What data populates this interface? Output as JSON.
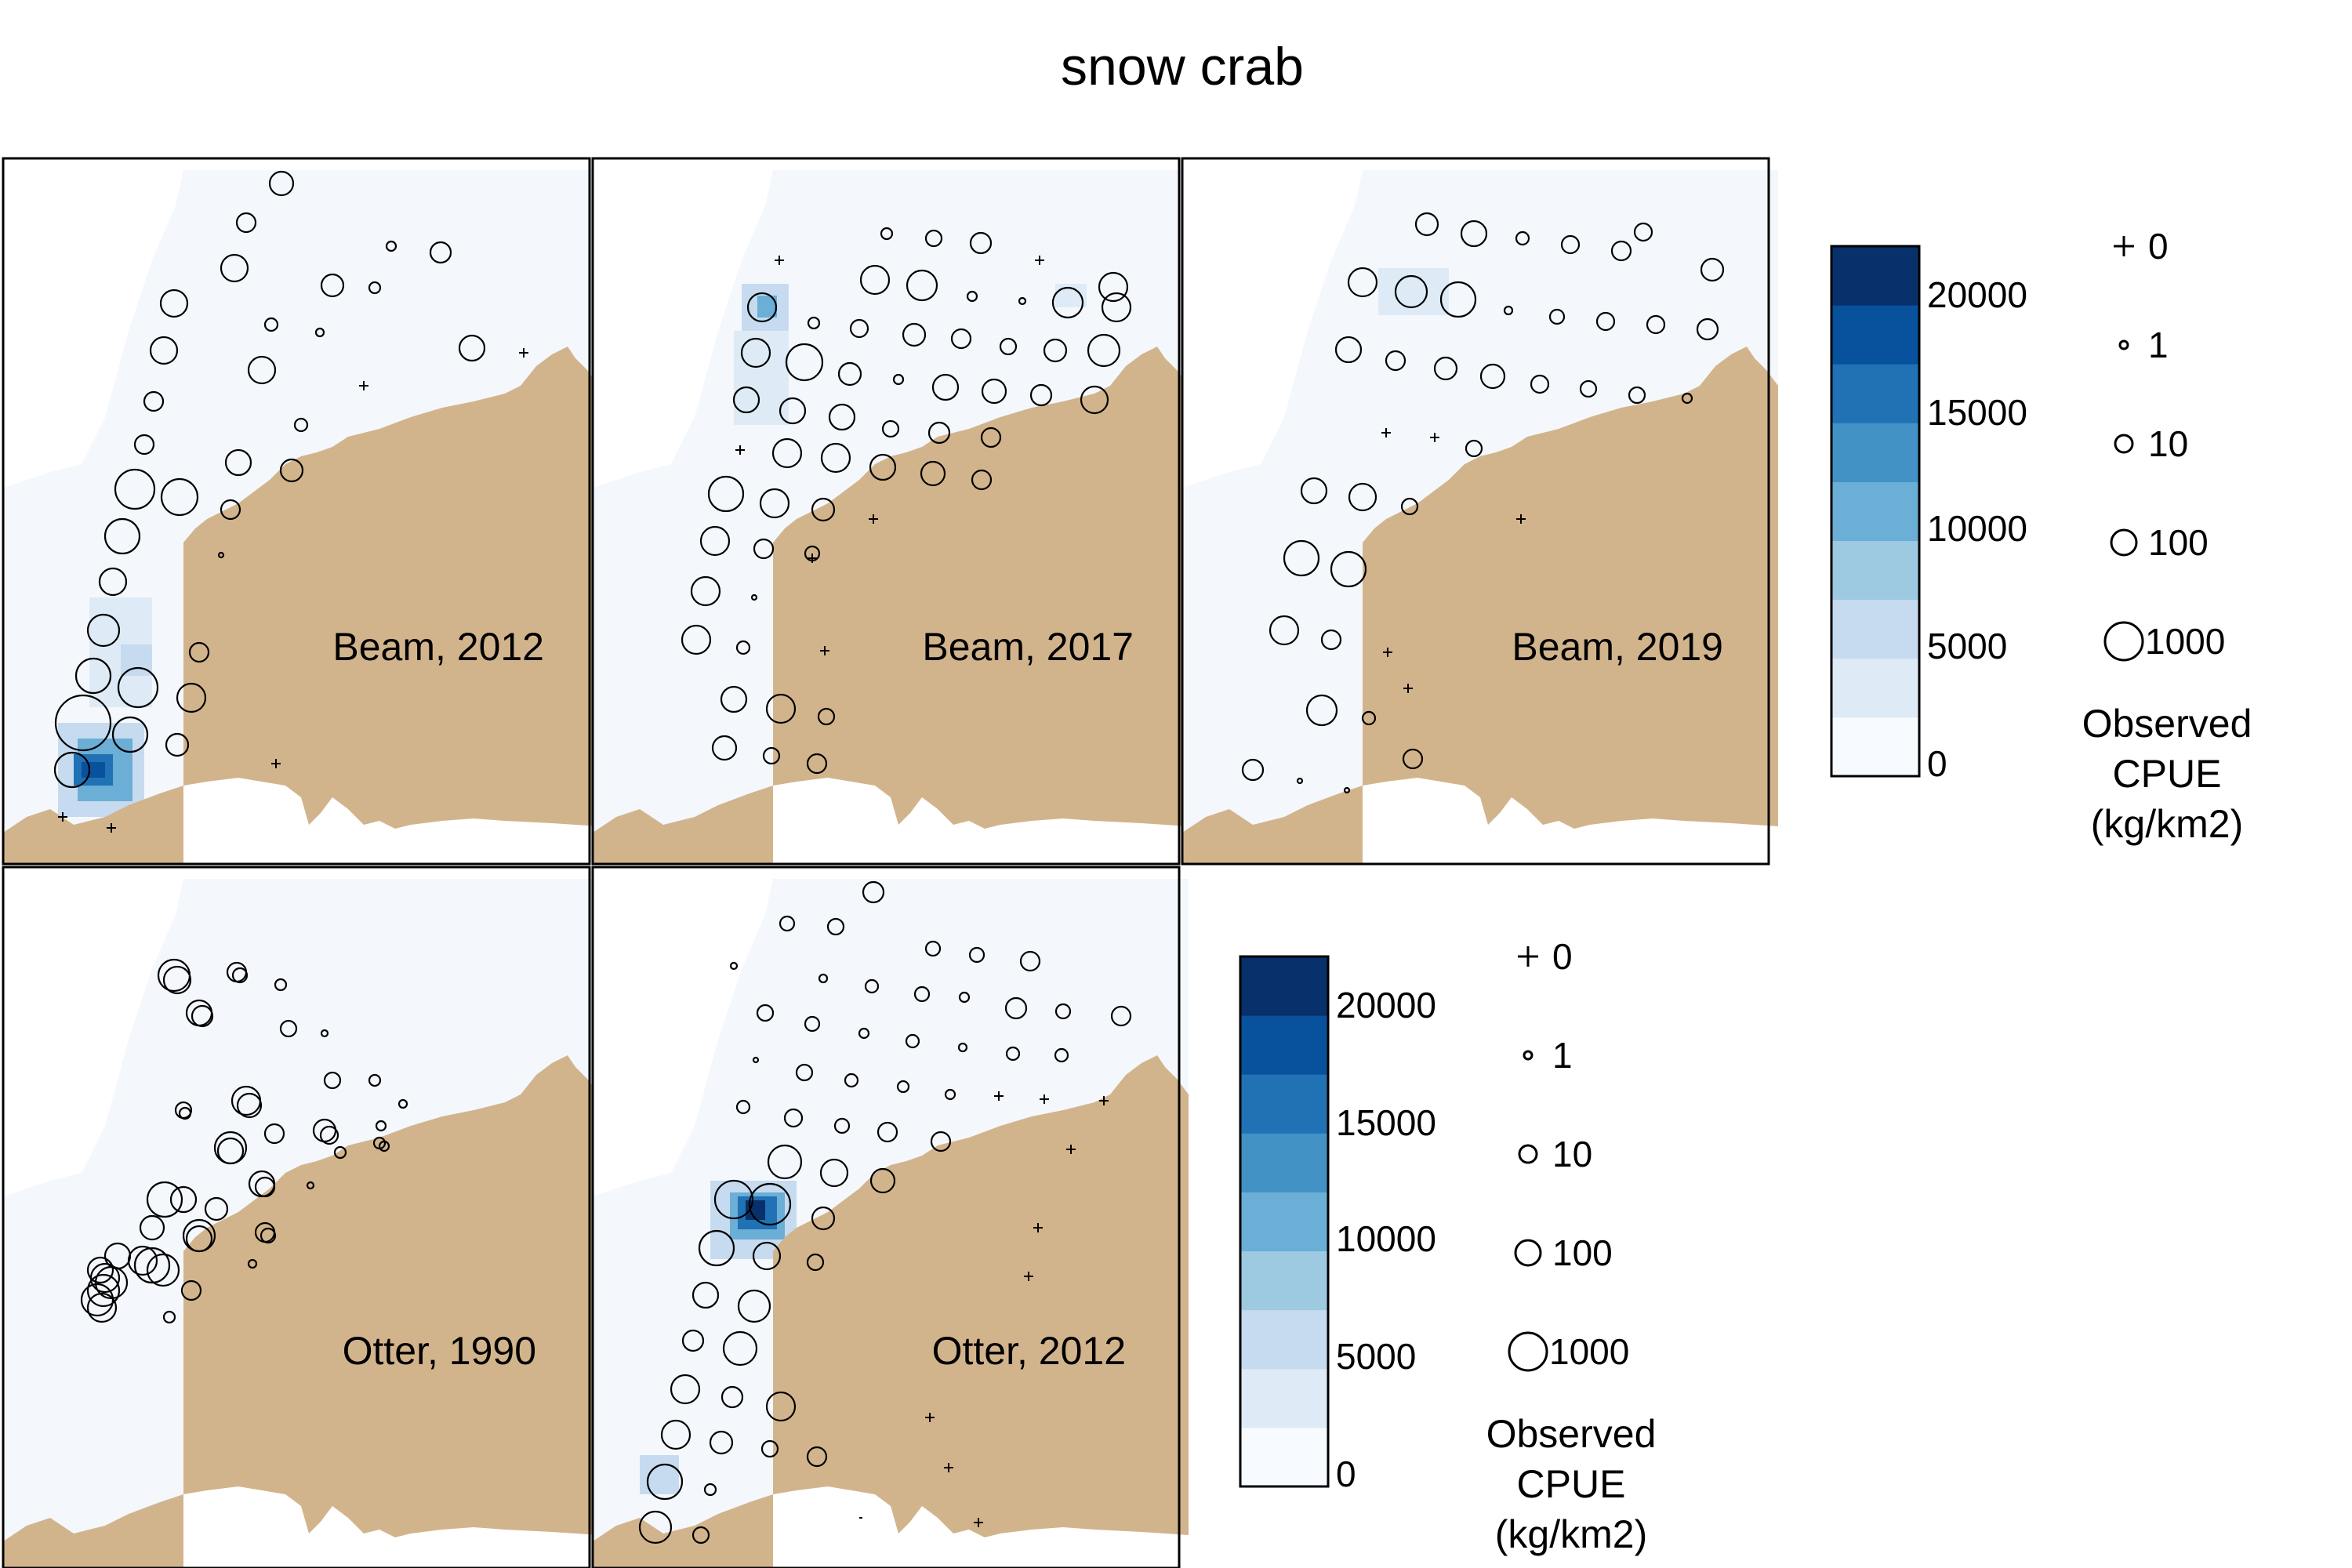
{
  "title": "snow crab",
  "colors": {
    "land": "#d2b48c",
    "water_base": "#f4f8fd",
    "frame": "#000000",
    "scale": [
      "#f7fbff",
      "#deebf7",
      "#c6dbef",
      "#9ecae1",
      "#6baed6",
      "#4292c6",
      "#2171b5",
      "#08519c",
      "#08306b"
    ]
  },
  "panels": [
    {
      "id": "beam-2012",
      "label": "Beam, 2012",
      "gear": "Beam",
      "year": "2012"
    },
    {
      "id": "beam-2017",
      "label": "Beam, 2017",
      "gear": "Beam",
      "year": "2017"
    },
    {
      "id": "beam-2019",
      "label": "Beam, 2019",
      "gear": "Beam",
      "year": "2019"
    },
    {
      "id": "otter-1990",
      "label": "Otter, 1990",
      "gear": "Otter",
      "year": "1990"
    },
    {
      "id": "otter-2012",
      "label": "Otter, 2012",
      "gear": "Otter",
      "year": "2012"
    }
  ],
  "colorbar": {
    "ticks": [
      "20000",
      "15000",
      "10000",
      "5000",
      "0"
    ],
    "tick_values": [
      20000,
      15000,
      10000,
      5000,
      0
    ],
    "max": 22500,
    "levels": 9
  },
  "size_legend": {
    "entries": [
      {
        "symbol": "plus",
        "label": "0",
        "value": 0
      },
      {
        "symbol": "circle",
        "label": "1",
        "value": 1
      },
      {
        "symbol": "circle",
        "label": "10",
        "value": 10
      },
      {
        "symbol": "circle",
        "label": "100",
        "value": 100
      },
      {
        "symbol": "circle",
        "label": "1000",
        "value": 1000
      }
    ],
    "title_lines": [
      "Observed",
      "CPUE",
      "(kg/km2)"
    ]
  }
}
